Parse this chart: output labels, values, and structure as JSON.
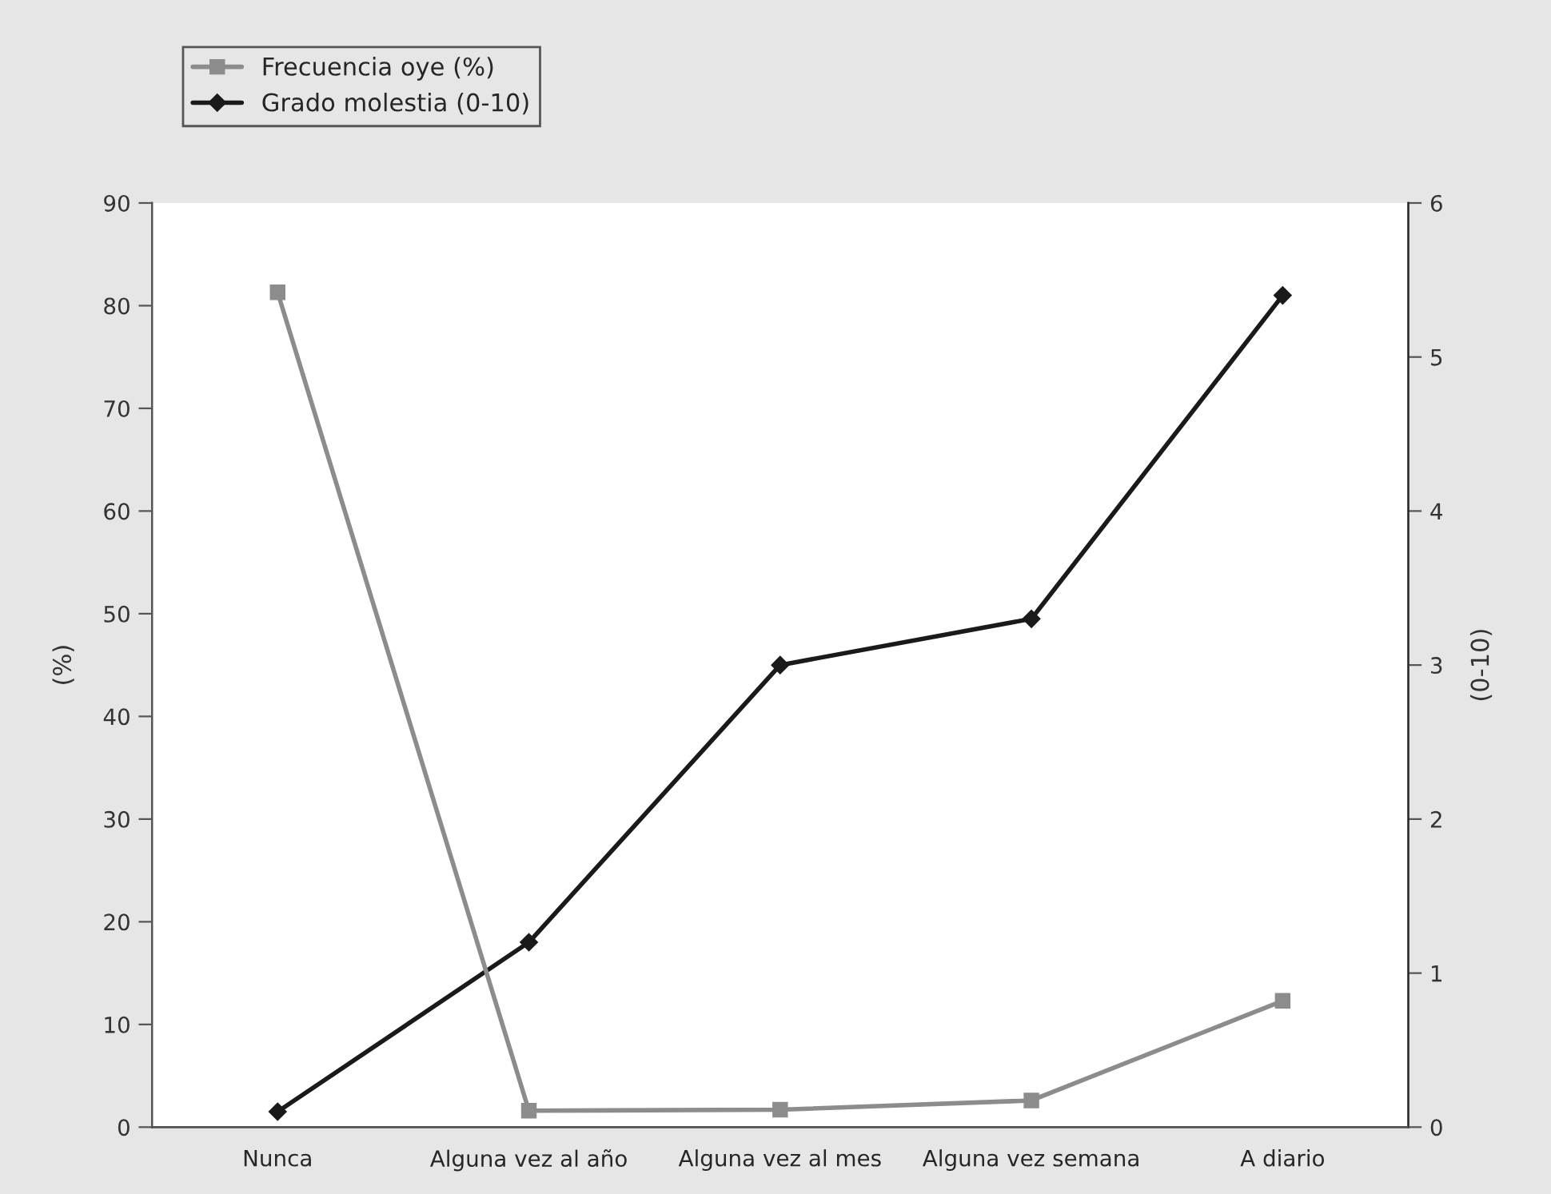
{
  "chart_data": {
    "type": "line",
    "ylabel": "(%)",
    "y2label": "(0-10)",
    "categories": [
      "Nunca",
      "Alguna vez al año",
      "Alguna vez al mes",
      "Alguna vez semana",
      "A diario"
    ],
    "series": [
      {
        "name": "Frecuencia oye (%)",
        "color": "#8c8c8c",
        "marker": "square",
        "values": [
          81.3,
          1.6,
          1.7,
          2.6,
          12.3
        ]
      },
      {
        "name": "Grado molestia (0-10)",
        "color": "#1a1a1a",
        "marker": "diamond",
        "axis": "y2",
        "values": [
          0.1,
          1.2,
          3.0,
          3.3,
          5.4
        ]
      }
    ],
    "ylim": [
      0,
      90
    ],
    "yticks": [
      0,
      10,
      20,
      30,
      40,
      50,
      60,
      70,
      80,
      90
    ],
    "y2lim": [
      0,
      6
    ],
    "y2ticks": [
      0,
      1,
      2,
      3,
      4,
      5,
      6
    ],
    "legend": "top left",
    "grid": false,
    "line_style": "solid"
  }
}
